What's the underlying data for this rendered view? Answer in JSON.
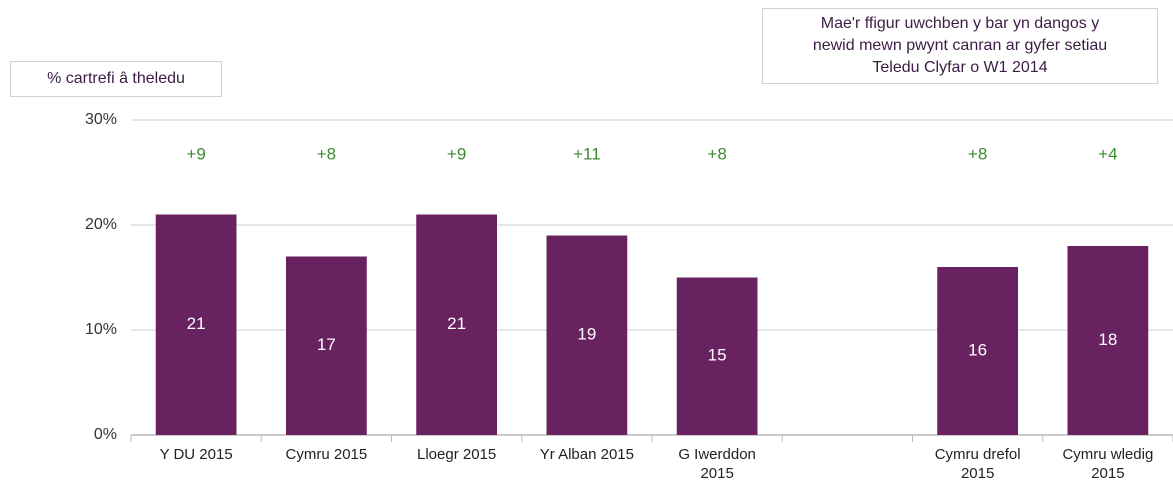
{
  "chart_data": {
    "type": "bar",
    "y_label": "% cartrefi â theledu",
    "annotation": [
      "Mae'r ffigur uwchben y bar yn dangos y",
      "newid mewn pwynt canran ar gyfer setiau",
      "Teledu Clyfar o W1 2014"
    ],
    "categories": [
      "Y DU 2015",
      "Cymru 2015",
      "Lloegr 2015",
      "Yr Alban 2015",
      "G Iwerddon 2015",
      null,
      "Cymru drefol 2015",
      "Cymru wledig 2015"
    ],
    "values": [
      21,
      17,
      21,
      19,
      15,
      null,
      16,
      18
    ],
    "change_labels": [
      "+9",
      "+8",
      "+9",
      "+11",
      "+8",
      null,
      "+8",
      "+4"
    ],
    "color": "#68225f",
    "ylim": [
      0,
      30
    ],
    "yticks": [
      {
        "value": 0,
        "label": "0%"
      },
      {
        "value": 10,
        "label": "10%"
      },
      {
        "value": 20,
        "label": "20%"
      },
      {
        "value": 30,
        "label": "30%"
      }
    ],
    "grid": true
  }
}
